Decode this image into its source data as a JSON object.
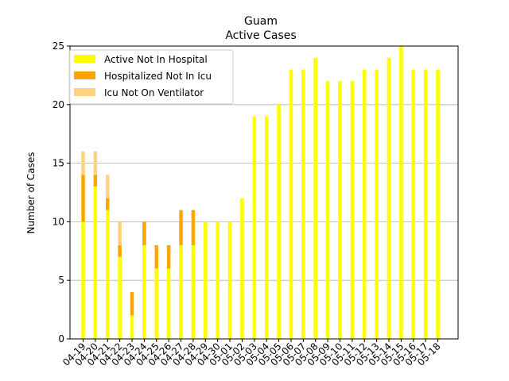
{
  "chart_data": {
    "type": "bar",
    "stacked": true,
    "title": "Guam",
    "subtitle": "Active Cases",
    "xlabel": "",
    "ylabel": "Number of Cases",
    "ylim": [
      0,
      25
    ],
    "yticks": [
      0,
      5,
      10,
      15,
      20,
      25
    ],
    "grid": "horizontal",
    "legend_position": "top-left",
    "categories": [
      "04-19",
      "04-20",
      "04-21",
      "04-22",
      "04-23",
      "04-24",
      "04-25",
      "04-26",
      "04-27",
      "04-28",
      "04-29",
      "04-30",
      "05-01",
      "05-02",
      "05-03",
      "05-04",
      "05-05",
      "05-06",
      "05-07",
      "05-08",
      "05-09",
      "05-10",
      "05-11",
      "05-12",
      "05-13",
      "05-14",
      "05-15",
      "05-16",
      "05-17",
      "05-18"
    ],
    "series": [
      {
        "name": "Active Not In Hospital",
        "color": "#ffff00",
        "values": [
          10,
          13,
          11,
          7,
          2,
          8,
          6,
          6,
          8,
          8,
          10,
          10,
          10,
          12,
          19,
          19,
          20,
          23,
          23,
          24,
          22,
          22,
          22,
          23,
          23,
          24,
          25,
          23,
          23,
          23
        ]
      },
      {
        "name": "Hospitalized Not In Icu",
        "color": "#ffa500",
        "values": [
          4,
          1,
          1,
          1,
          2,
          2,
          2,
          2,
          3,
          3,
          0,
          0,
          0,
          0,
          0,
          0,
          0,
          0,
          0,
          0,
          0,
          0,
          0,
          0,
          0,
          0,
          0,
          0,
          0,
          0
        ]
      },
      {
        "name": "Icu Not On Ventilator",
        "color": "#ffd27f",
        "values": [
          2,
          2,
          2,
          2,
          0,
          0,
          0,
          0,
          0,
          0,
          0,
          0,
          0,
          0,
          0,
          0,
          0,
          0,
          0,
          0,
          0,
          0,
          0,
          0,
          0,
          0,
          0,
          0,
          0,
          0
        ]
      }
    ]
  }
}
